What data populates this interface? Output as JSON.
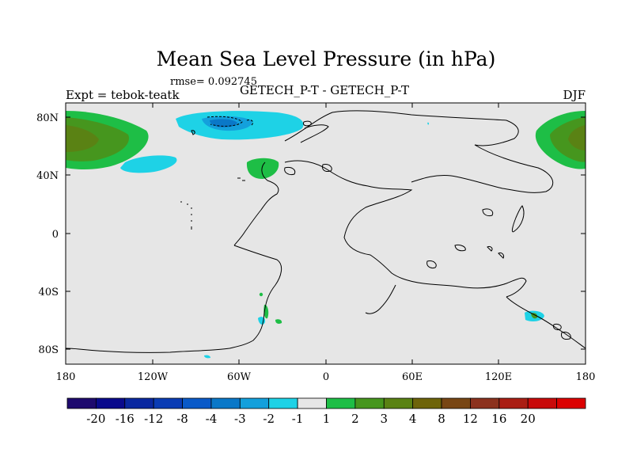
{
  "title": "Mean Sea Level Pressure (in hPa)",
  "rmse_label": "rmse= 0.092745",
  "subtitle_center": "GETECH_P-T - GETECH_P-T",
  "subtitle_left": "Expt = tebok-teatk",
  "subtitle_right": "DJF",
  "y_ticks": [
    "80N",
    "40N",
    "0",
    "40S",
    "80S"
  ],
  "x_ticks": [
    "180",
    "120W",
    "60W",
    "0",
    "60E",
    "120E",
    "180"
  ],
  "colorbar": {
    "colors": [
      "#1e0a6e",
      "#0a0a8c",
      "#0a28a0",
      "#0a3cb4",
      "#0a5ac8",
      "#0a78c8",
      "#14a0dc",
      "#1ed2e6",
      "#e6e6e6",
      "#1ebe46",
      "#46961e",
      "#5a8214",
      "#6e640a",
      "#784614",
      "#8c321e",
      "#aa1e14",
      "#c80a0a",
      "#dc0000"
    ],
    "labels": [
      "-20",
      "-16",
      "-12",
      "-8",
      "-4",
      "-3",
      "-2",
      "-1",
      "1",
      "2",
      "3",
      "4",
      "8",
      "12",
      "16",
      "20"
    ]
  }
}
